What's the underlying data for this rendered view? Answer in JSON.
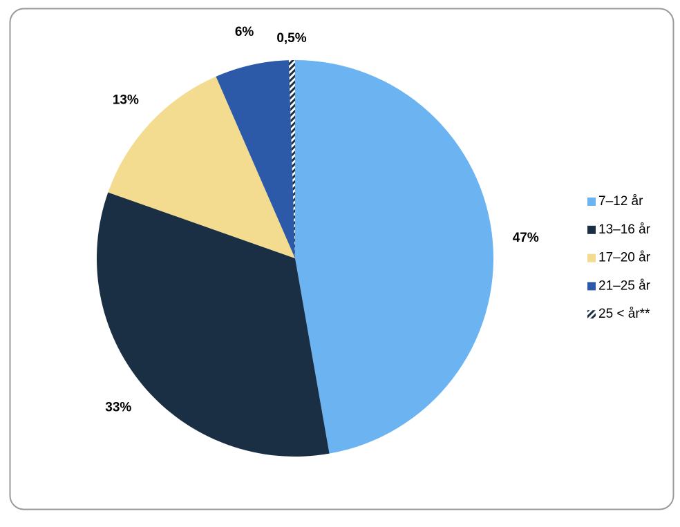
{
  "chart_data": {
    "type": "pie",
    "categories": [
      "7–12 år",
      "13–16 år",
      "17–20 år",
      "21–25 år",
      "25 < år**"
    ],
    "values": [
      47,
      33,
      13,
      6,
      0.5
    ],
    "value_labels": [
      "47%",
      "33%",
      "13%",
      "6%",
      "0,5%"
    ],
    "colors": [
      "#6bb4f1",
      "#1a2e44",
      "#f3dc8f",
      "#2c5aa8",
      "#1a2e44"
    ],
    "hatch": [
      false,
      false,
      false,
      false,
      true
    ]
  }
}
